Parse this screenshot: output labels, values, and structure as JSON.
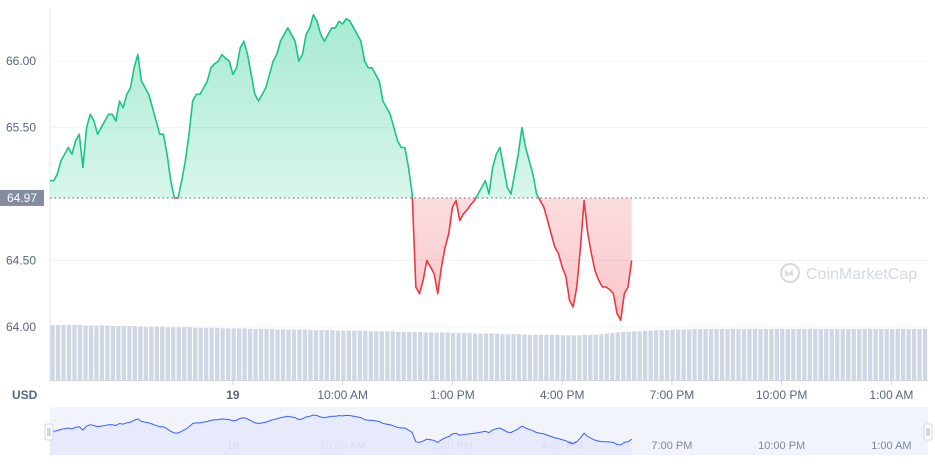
{
  "chart_data": {
    "type": "area",
    "currency_label": "USD",
    "reference": {
      "value": 64.97,
      "label": "64.97"
    },
    "y_ticks": [
      {
        "value": 66.0,
        "label": "66.00"
      },
      {
        "value": 65.5,
        "label": "65.50"
      },
      {
        "value": 64.5,
        "label": "64.50"
      },
      {
        "value": 64.0,
        "label": "64.00"
      }
    ],
    "ylim": [
      63.6,
      66.4
    ],
    "x_ticks": [
      {
        "t": 5.0,
        "label": "19"
      },
      {
        "t": 8.0,
        "label": "10:00 AM"
      },
      {
        "t": 11.0,
        "label": "1:00 PM"
      },
      {
        "t": 14.0,
        "label": "4:00 PM"
      },
      {
        "t": 17.0,
        "label": "7:00 PM"
      },
      {
        "t": 20.0,
        "label": "10:00 PM"
      },
      {
        "t": 23.0,
        "label": "1:00 AM"
      }
    ],
    "xlim": [
      0.0,
      24.0
    ],
    "price_t_start": 0.0,
    "price_t_step": 0.1,
    "prices": [
      65.1,
      65.1,
      65.15,
      65.25,
      65.3,
      65.35,
      65.3,
      65.4,
      65.45,
      65.2,
      65.5,
      65.6,
      65.55,
      65.45,
      65.5,
      65.55,
      65.6,
      65.6,
      65.55,
      65.7,
      65.65,
      65.75,
      65.8,
      65.95,
      66.05,
      65.85,
      65.8,
      65.75,
      65.65,
      65.55,
      65.45,
      65.45,
      65.3,
      65.1,
      64.97,
      64.97,
      65.1,
      65.25,
      65.45,
      65.7,
      65.75,
      65.75,
      65.8,
      65.85,
      65.95,
      65.98,
      66.0,
      66.05,
      66.02,
      66.0,
      65.9,
      65.95,
      66.1,
      66.15,
      66.05,
      65.9,
      65.75,
      65.7,
      65.75,
      65.8,
      65.9,
      66.0,
      66.05,
      66.15,
      66.2,
      66.25,
      66.2,
      66.15,
      66.0,
      66.05,
      66.2,
      66.25,
      66.35,
      66.3,
      66.2,
      66.15,
      66.2,
      66.25,
      66.25,
      66.3,
      66.28,
      66.32,
      66.3,
      66.25,
      66.2,
      66.15,
      66.0,
      65.95,
      65.95,
      65.9,
      65.85,
      65.7,
      65.65,
      65.6,
      65.5,
      65.4,
      65.35,
      65.35,
      65.2,
      65.0,
      64.3,
      64.25,
      64.35,
      64.5,
      64.45,
      64.4,
      64.25,
      64.45,
      64.6,
      64.7,
      64.9,
      64.95,
      64.8,
      64.85,
      64.88,
      64.92,
      64.95,
      65.0,
      65.05,
      65.1,
      65.0,
      65.2,
      65.3,
      65.35,
      65.2,
      65.05,
      65.0,
      65.15,
      65.3,
      65.5,
      65.35,
      65.25,
      65.15,
      65.0,
      64.95,
      64.9,
      64.8,
      64.7,
      64.6,
      64.55,
      64.45,
      64.38,
      64.2,
      64.15,
      64.3,
      64.6,
      64.95,
      64.7,
      64.55,
      64.42,
      64.35,
      64.3,
      64.3,
      64.28,
      64.25,
      64.1,
      64.05,
      64.25,
      64.3,
      64.5
    ],
    "volume_profile": [
      0.95,
      0.95,
      0.95,
      0.95,
      0.95,
      0.95,
      0.94,
      0.94,
      0.94,
      0.94,
      0.94,
      0.93,
      0.93,
      0.93,
      0.93,
      0.93,
      0.92,
      0.92,
      0.92,
      0.92,
      0.92,
      0.91,
      0.91,
      0.91,
      0.91,
      0.91,
      0.9,
      0.9,
      0.9,
      0.9,
      0.9,
      0.89,
      0.89,
      0.89,
      0.89,
      0.89,
      0.88,
      0.88,
      0.88,
      0.88,
      0.88,
      0.87,
      0.87,
      0.87,
      0.87,
      0.87,
      0.87,
      0.86,
      0.86,
      0.86,
      0.86,
      0.86,
      0.85,
      0.85,
      0.85,
      0.85,
      0.85,
      0.85,
      0.84,
      0.84,
      0.84,
      0.84,
      0.84,
      0.83,
      0.83,
      0.83,
      0.83,
      0.83,
      0.82,
      0.82,
      0.82,
      0.82,
      0.82,
      0.81,
      0.81,
      0.81,
      0.81,
      0.8,
      0.8,
      0.8,
      0.8,
      0.8,
      0.79,
      0.79,
      0.79,
      0.79,
      0.78,
      0.78,
      0.78,
      0.78,
      0.78,
      0.78,
      0.78,
      0.77,
      0.77,
      0.77,
      0.77,
      0.78,
      0.78,
      0.78,
      0.79,
      0.8,
      0.81,
      0.82,
      0.83,
      0.83,
      0.84,
      0.84,
      0.85,
      0.85,
      0.86,
      0.86,
      0.86,
      0.87,
      0.87,
      0.87,
      0.87,
      0.88,
      0.88,
      0.88,
      0.88,
      0.88,
      0.88,
      0.88,
      0.88,
      0.88,
      0.88,
      0.88,
      0.88,
      0.88,
      0.88,
      0.88,
      0.88,
      0.88,
      0.88,
      0.88,
      0.88,
      0.88,
      0.88,
      0.88,
      0.88,
      0.88,
      0.88,
      0.88,
      0.88,
      0.88,
      0.88,
      0.88,
      0.88,
      0.88,
      0.88,
      0.88,
      0.88,
      0.88,
      0.88,
      0.88,
      0.88,
      0.88,
      0.88,
      0.88
    ],
    "watermark_text": "CoinMarketCap",
    "grid": true,
    "colors": {
      "up": "#16c784",
      "down": "#ea3943",
      "grid": "#eff2f5",
      "text": "#58667e",
      "reference_tag": "#858ca2",
      "volume": "#cfd6e4",
      "navigator_fill": "#e4e9fb",
      "navigator_line": "#3861fb"
    }
  }
}
